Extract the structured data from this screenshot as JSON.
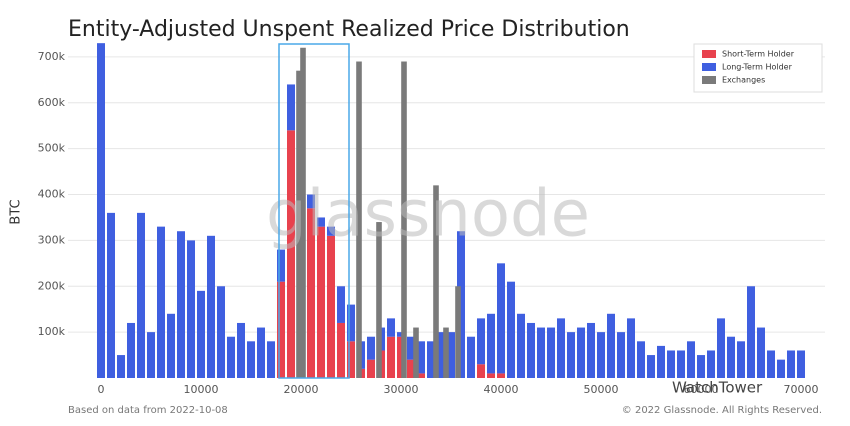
{
  "chart_data": {
    "type": "bar",
    "title": "Entity-Adjusted Unspent Realized Price Distribution",
    "y_label": "BTC",
    "footnote_left": "Based on data from 2022-10-08",
    "footnote_right": "© 2022 Glassnode. All Rights Reserved.",
    "watermark": "glassnode",
    "overlay_text": "WatchTower",
    "x": [
      0,
      1000,
      2000,
      3000,
      4000,
      5000,
      6000,
      7000,
      8000,
      9000,
      10000,
      11000,
      12000,
      13000,
      14000,
      15000,
      16000,
      17000,
      18000,
      19000,
      20000,
      21000,
      22000,
      23000,
      24000,
      25000,
      26000,
      27000,
      28000,
      29000,
      30000,
      31000,
      32000,
      33000,
      34000,
      35000,
      36000,
      37000,
      38000,
      39000,
      40000,
      41000,
      42000,
      43000,
      44000,
      45000,
      46000,
      47000,
      48000,
      49000,
      50000,
      51000,
      52000,
      53000,
      54000,
      55000,
      56000,
      57000,
      58000,
      59000,
      60000,
      61000,
      62000,
      63000,
      64000,
      65000,
      66000,
      67000,
      68000,
      69000,
      70000
    ],
    "series": [
      {
        "name": "Short-Term Holder",
        "color": "#e8424e",
        "stacked": true,
        "values": [
          0,
          0,
          0,
          0,
          0,
          0,
          0,
          0,
          0,
          0,
          0,
          0,
          0,
          0,
          0,
          0,
          0,
          0,
          210000,
          540000,
          480000,
          370000,
          330000,
          310000,
          120000,
          80000,
          20000,
          40000,
          60000,
          90000,
          90000,
          40000,
          10000,
          0,
          0,
          0,
          0,
          0,
          30000,
          10000,
          10000,
          0,
          0,
          0,
          0,
          0,
          0,
          0,
          0,
          0,
          0,
          0,
          0,
          0,
          0,
          0,
          0,
          0,
          0,
          0,
          0,
          0,
          0,
          0,
          0,
          0,
          0,
          0,
          0,
          0,
          0
        ]
      },
      {
        "name": "Long-Term Holder",
        "color": "#3f5fe0",
        "stacked": true,
        "values": [
          730000,
          360000,
          50000,
          120000,
          360000,
          100000,
          330000,
          140000,
          320000,
          300000,
          190000,
          310000,
          200000,
          90000,
          120000,
          80000,
          110000,
          80000,
          70000,
          100000,
          40000,
          30000,
          20000,
          20000,
          80000,
          80000,
          60000,
          50000,
          50000,
          40000,
          10000,
          50000,
          70000,
          80000,
          100000,
          100000,
          320000,
          90000,
          100000,
          130000,
          240000,
          210000,
          140000,
          120000,
          110000,
          110000,
          130000,
          100000,
          110000,
          120000,
          100000,
          140000,
          100000,
          130000,
          80000,
          50000,
          70000,
          60000,
          60000,
          80000,
          50000,
          60000,
          130000,
          90000,
          80000,
          200000,
          110000,
          60000,
          40000,
          60000,
          60000
        ]
      },
      {
        "name": "Exchanges",
        "color": "#7a7a7a",
        "stacked": false,
        "x": [
          19800,
          20200,
          25800,
          27800,
          30300,
          31500,
          33500,
          34500,
          35700
        ],
        "values": [
          670000,
          720000,
          690000,
          340000,
          690000,
          110000,
          420000,
          110000,
          200000
        ]
      }
    ],
    "xlim": [
      -3300,
      72400
    ],
    "ylim": [
      0,
      726000
    ],
    "xticks": [
      0,
      10000,
      20000,
      30000,
      40000,
      50000,
      60000,
      70000
    ],
    "yticks": [
      {
        "value": 100000,
        "label": "100k"
      },
      {
        "value": 200000,
        "label": "200k"
      },
      {
        "value": 300000,
        "label": "300k"
      },
      {
        "value": 400000,
        "label": "400k"
      },
      {
        "value": 500000,
        "label": "500k"
      },
      {
        "value": 600000,
        "label": "600k"
      },
      {
        "value": 700000,
        "label": "700k"
      }
    ],
    "grid": true,
    "legend": "top-right"
  }
}
